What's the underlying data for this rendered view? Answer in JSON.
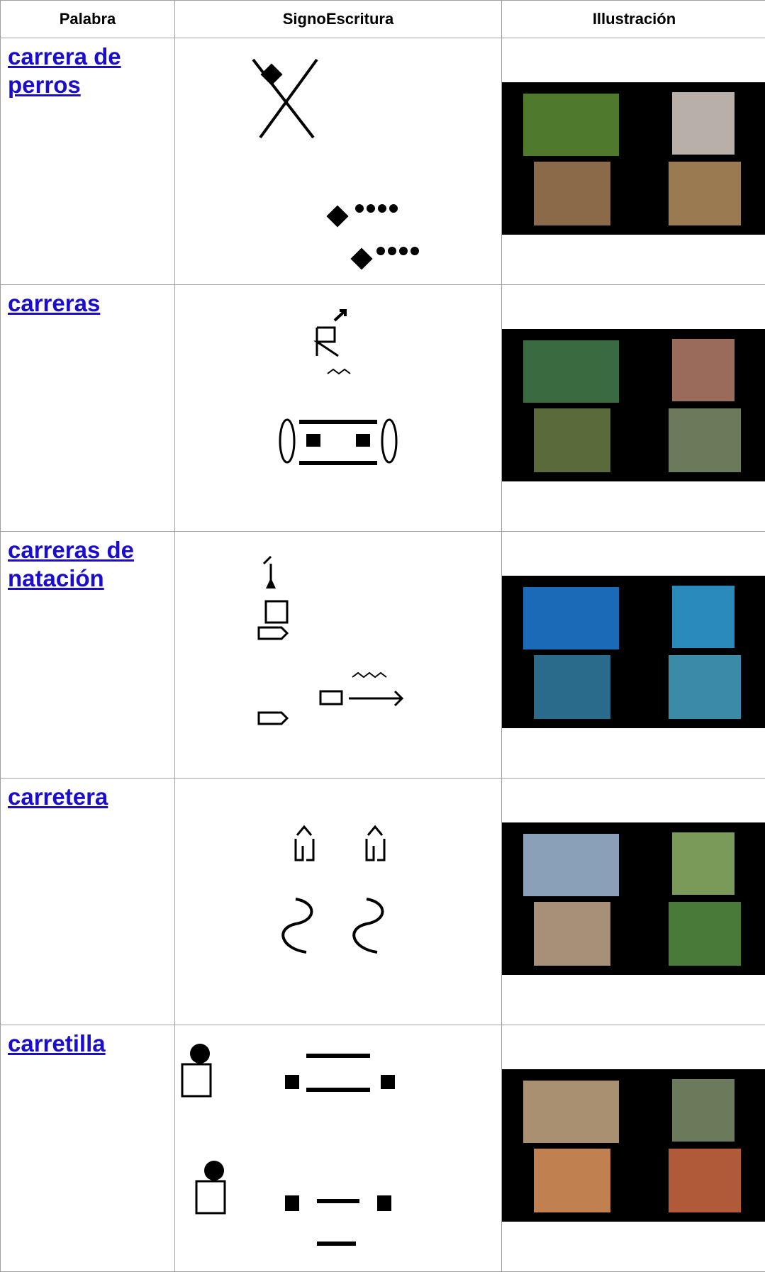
{
  "header": {
    "columns": [
      "Palabra",
      "SignoEscritura",
      "Illustración"
    ]
  },
  "rows": [
    {
      "word": "carrera de perros"
    },
    {
      "word": "carreras"
    },
    {
      "word": "carreras de natación"
    },
    {
      "word": "carretera"
    },
    {
      "word": "carretilla"
    }
  ]
}
